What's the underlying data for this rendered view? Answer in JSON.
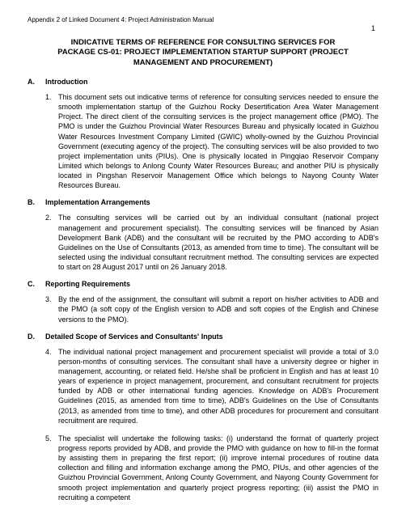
{
  "header": "Appendix 2 of Linked Document 4: Project Administration Manual",
  "pageNumber": "1",
  "title_line1": "INDICATIVE TERMS OF REFERENCE FOR CONSULTING SERVICES FOR",
  "title_line2": "PACKAGE CS-01: PROJECT IMPLEMENTATION STARTUP SUPPORT (PROJECT",
  "title_line3": "MANAGEMENT AND PROCUREMENT)",
  "sectionA": {
    "letter": "A.",
    "heading": "Introduction"
  },
  "para1": {
    "num": "1.",
    "text": "This document sets out indicative terms of reference for consulting services needed to ensure the smooth implementation startup of the Guizhou Rocky Desertification Area Water Management Project. The direct client of the consulting services is the project management office (PMO). The PMO is under the Guizhou Provincial Water Resources Bureau and physically located in Guizhou Water Resources Investment Company Limited (GWIC) wholly-owned by the Guizhou Provincial Government (executing agency of the project). The consulting services will be also provided to two project implementation units (PIUs). One is physically located in Pingqiao Reservoir Company Limited which belongs to Anlong County Water Resources Bureau; and another PIU is physically located in Pingshan Reservoir Management Office which belongs to Nayong County Water Resources Bureau."
  },
  "sectionB": {
    "letter": "B.",
    "heading": "Implementation Arrangements"
  },
  "para2": {
    "num": "2.",
    "text": "The consulting services will be carried out by an individual consultant (national project management and procurement specialist). The consulting services will be financed by Asian Development Bank (ADB) and the consultant will be recruited by the PMO according to ADB's Guidelines on the Use of Consultants (2013, as amended from time to time). The consultant will be selected using the individual consultant recruitment method. The consulting services are expected to start on 28 August 2017 until on 26 January 2018."
  },
  "sectionC": {
    "letter": "C.",
    "heading": "Reporting Requirements"
  },
  "para3": {
    "num": "3.",
    "text": "By the end of the assignment, the consultant will submit a report on his/her activities to ADB and the PMO (a soft copy of the English version to ADB and soft copies of the English and Chinese versions to the PMO)."
  },
  "sectionD": {
    "letter": "D.",
    "heading": "Detailed Scope of Services and Consultants' Inputs"
  },
  "para4": {
    "num": "4.",
    "text": "The individual national project management and procurement specialist will provide a total of 3.0 person-months of consulting services. The consultant shall have a university degree or higher in management, accounting, or related field. He/she shall be proficient in English and has at least 10 years of experience in project management, procurement, and consultant recruitment for projects funded by ADB or other international funding agencies. Knowledge on ADB's Procurement Guidelines (2015, as amended from time to time), ADB's Guidelines on the Use of Consultants (2013, as amended from time to time), and other ADB procedures for procurement and consultant recruitment are required."
  },
  "para5": {
    "num": "5.",
    "text": "The specialist will undertake the following tasks: (i) understand the format of quarterly project progress reports provided by ADB, and provide the PMO with guidance on how to fill-in the format by assisting them in preparing the first report; (ii)  improve internal procedures of routine data collection and filling and information exchange among the PMO, PIUs, and other agencies of the Guizhou Provincial Government, Anlong County Government, and Nayong County Government for smooth project implementation and quarterly project progress reporting; (iii) assist the PMO in recruiting a competent"
  },
  "style": {
    "body_fontsize": 9,
    "title_fontsize": 9.5,
    "header_fontsize": 8,
    "text_color": "#000000",
    "background_color": "#ffffff",
    "font_family": "Arial"
  }
}
